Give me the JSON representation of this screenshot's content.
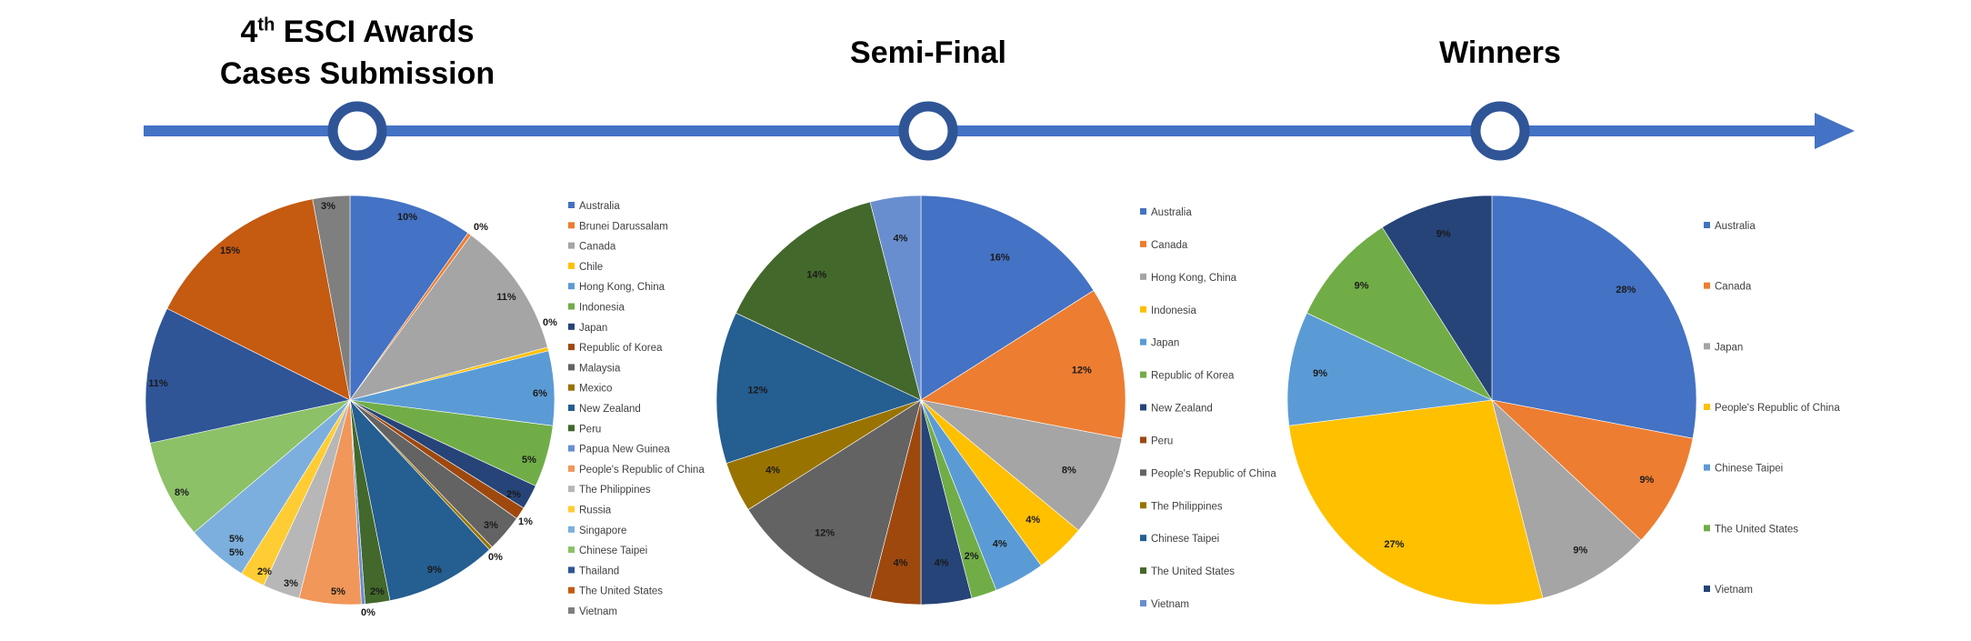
{
  "stages": [
    {
      "title_pre": "4",
      "title_sup": "th",
      "title_rest": " ESCI Awards",
      "title_line2": "Cases Submission"
    },
    {
      "title": "Semi-Final"
    },
    {
      "title": "Winners"
    }
  ],
  "colors": {
    "timeline": "#4472C4",
    "node_stroke": "#2F5597"
  },
  "chart_data": [
    {
      "type": "pie",
      "categories": [
        "Australia",
        "Brunei Darussalam",
        "Canada",
        "Chile",
        "Hong Kong, China",
        "Indonesia",
        "Japan",
        "Republic of Korea",
        "Malaysia",
        "Mexico",
        "New Zealand",
        "Peru",
        "Papua New Guinea",
        "People's Republic of China",
        "The Philippines",
        "Russia",
        "Singapore",
        "Chinese Taipei",
        "Thailand",
        "The United States",
        "Vietnam"
      ],
      "values": [
        10,
        0.3,
        11,
        0.3,
        6,
        5,
        2,
        1,
        3,
        0.3,
        9,
        2,
        0.3,
        5,
        3,
        2,
        5,
        8,
        11,
        15,
        3
      ],
      "labels": [
        "10%",
        "0%",
        "11%",
        "0%",
        "6%",
        "5%",
        "2%",
        "1%",
        "3%",
        "0%",
        "9%",
        "2%",
        "0%",
        "5%",
        "3%",
        "2%",
        "5%",
        "8%",
        "11%",
        "15%",
        "3%"
      ],
      "extra_labels": [
        "5%"
      ],
      "colors": [
        "#4472C4",
        "#ED7D31",
        "#A5A5A5",
        "#FFC000",
        "#5B9BD5",
        "#70AD47",
        "#264478",
        "#9E480E",
        "#636363",
        "#997300",
        "#255E91",
        "#43682B",
        "#698ED0",
        "#F1975A",
        "#B7B7B7",
        "#FFCD33",
        "#7CAFDD",
        "#8CC168",
        "#2F5597",
        "#C55A11",
        "#7F7F7F"
      ],
      "legend_position": "right"
    },
    {
      "type": "pie",
      "categories": [
        "Australia",
        "Canada",
        "Hong Kong, China",
        "Indonesia",
        "Japan",
        "Republic of Korea",
        "New Zealand",
        "Peru",
        "People's Republic of China",
        "The Philippines",
        "Chinese Taipei",
        "The United States",
        "Vietnam"
      ],
      "values": [
        16,
        12,
        8,
        4,
        4,
        2,
        4,
        4,
        12,
        4,
        12,
        14,
        4
      ],
      "labels": [
        "16%",
        "12%",
        "8%",
        "4%",
        "4%",
        "2%",
        "4%",
        "4%",
        "12%",
        "4%",
        "12%",
        "14%",
        "4%"
      ],
      "colors": [
        "#4472C4",
        "#ED7D31",
        "#A5A5A5",
        "#FFC000",
        "#5B9BD5",
        "#70AD47",
        "#264478",
        "#9E480E",
        "#636363",
        "#997300",
        "#255E91",
        "#43682B",
        "#698ED0"
      ],
      "legend_position": "right"
    },
    {
      "type": "pie",
      "categories": [
        "Australia",
        "Canada",
        "Japan",
        "People's Republic of China",
        "Chinese Taipei",
        "The United States",
        "Vietnam"
      ],
      "values": [
        28,
        9,
        9,
        27,
        9,
        9,
        9
      ],
      "labels": [
        "28%",
        "9%",
        "9%",
        "27%",
        "9%",
        "9%",
        "9%"
      ],
      "colors": [
        "#4472C4",
        "#ED7D31",
        "#A5A5A5",
        "#FFC000",
        "#5B9BD5",
        "#70AD47",
        "#264478"
      ],
      "legend_position": "right"
    }
  ]
}
